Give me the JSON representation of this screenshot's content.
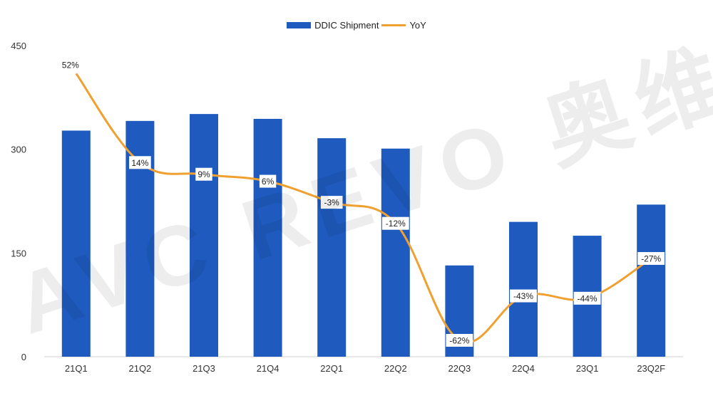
{
  "chart_data": {
    "type": "bar",
    "categories": [
      "21Q1",
      "21Q2",
      "21Q3",
      "21Q4",
      "22Q1",
      "22Q2",
      "22Q3",
      "22Q4",
      "23Q1",
      "23Q2F"
    ],
    "series": [
      {
        "name": "DDIC Shipment",
        "type": "bar",
        "axis": "left",
        "values": [
          327,
          341,
          351,
          344,
          316,
          301,
          132,
          195,
          175,
          220
        ]
      },
      {
        "name": "YoY",
        "type": "line",
        "axis": "right",
        "values": [
          52,
          14,
          9,
          6,
          -3,
          -12,
          -62,
          -43,
          -44,
          -27
        ],
        "labels": [
          "52%",
          "14%",
          "9%",
          "6%",
          "-3%",
          "-12%",
          "-62%",
          "-43%",
          "-44%",
          "-27%"
        ]
      }
    ],
    "ylim": [
      0,
      450
    ],
    "yticks": [
      "0",
      "150",
      "300",
      "450"
    ],
    "y2lim": [
      -69,
      64
    ],
    "grid": false,
    "legend_position": "top-center",
    "colors": {
      "bar": "#1f5bbf",
      "line": "#f0a030"
    }
  },
  "watermark": {
    "text": "AVC REVO 奥维睿沃"
  }
}
